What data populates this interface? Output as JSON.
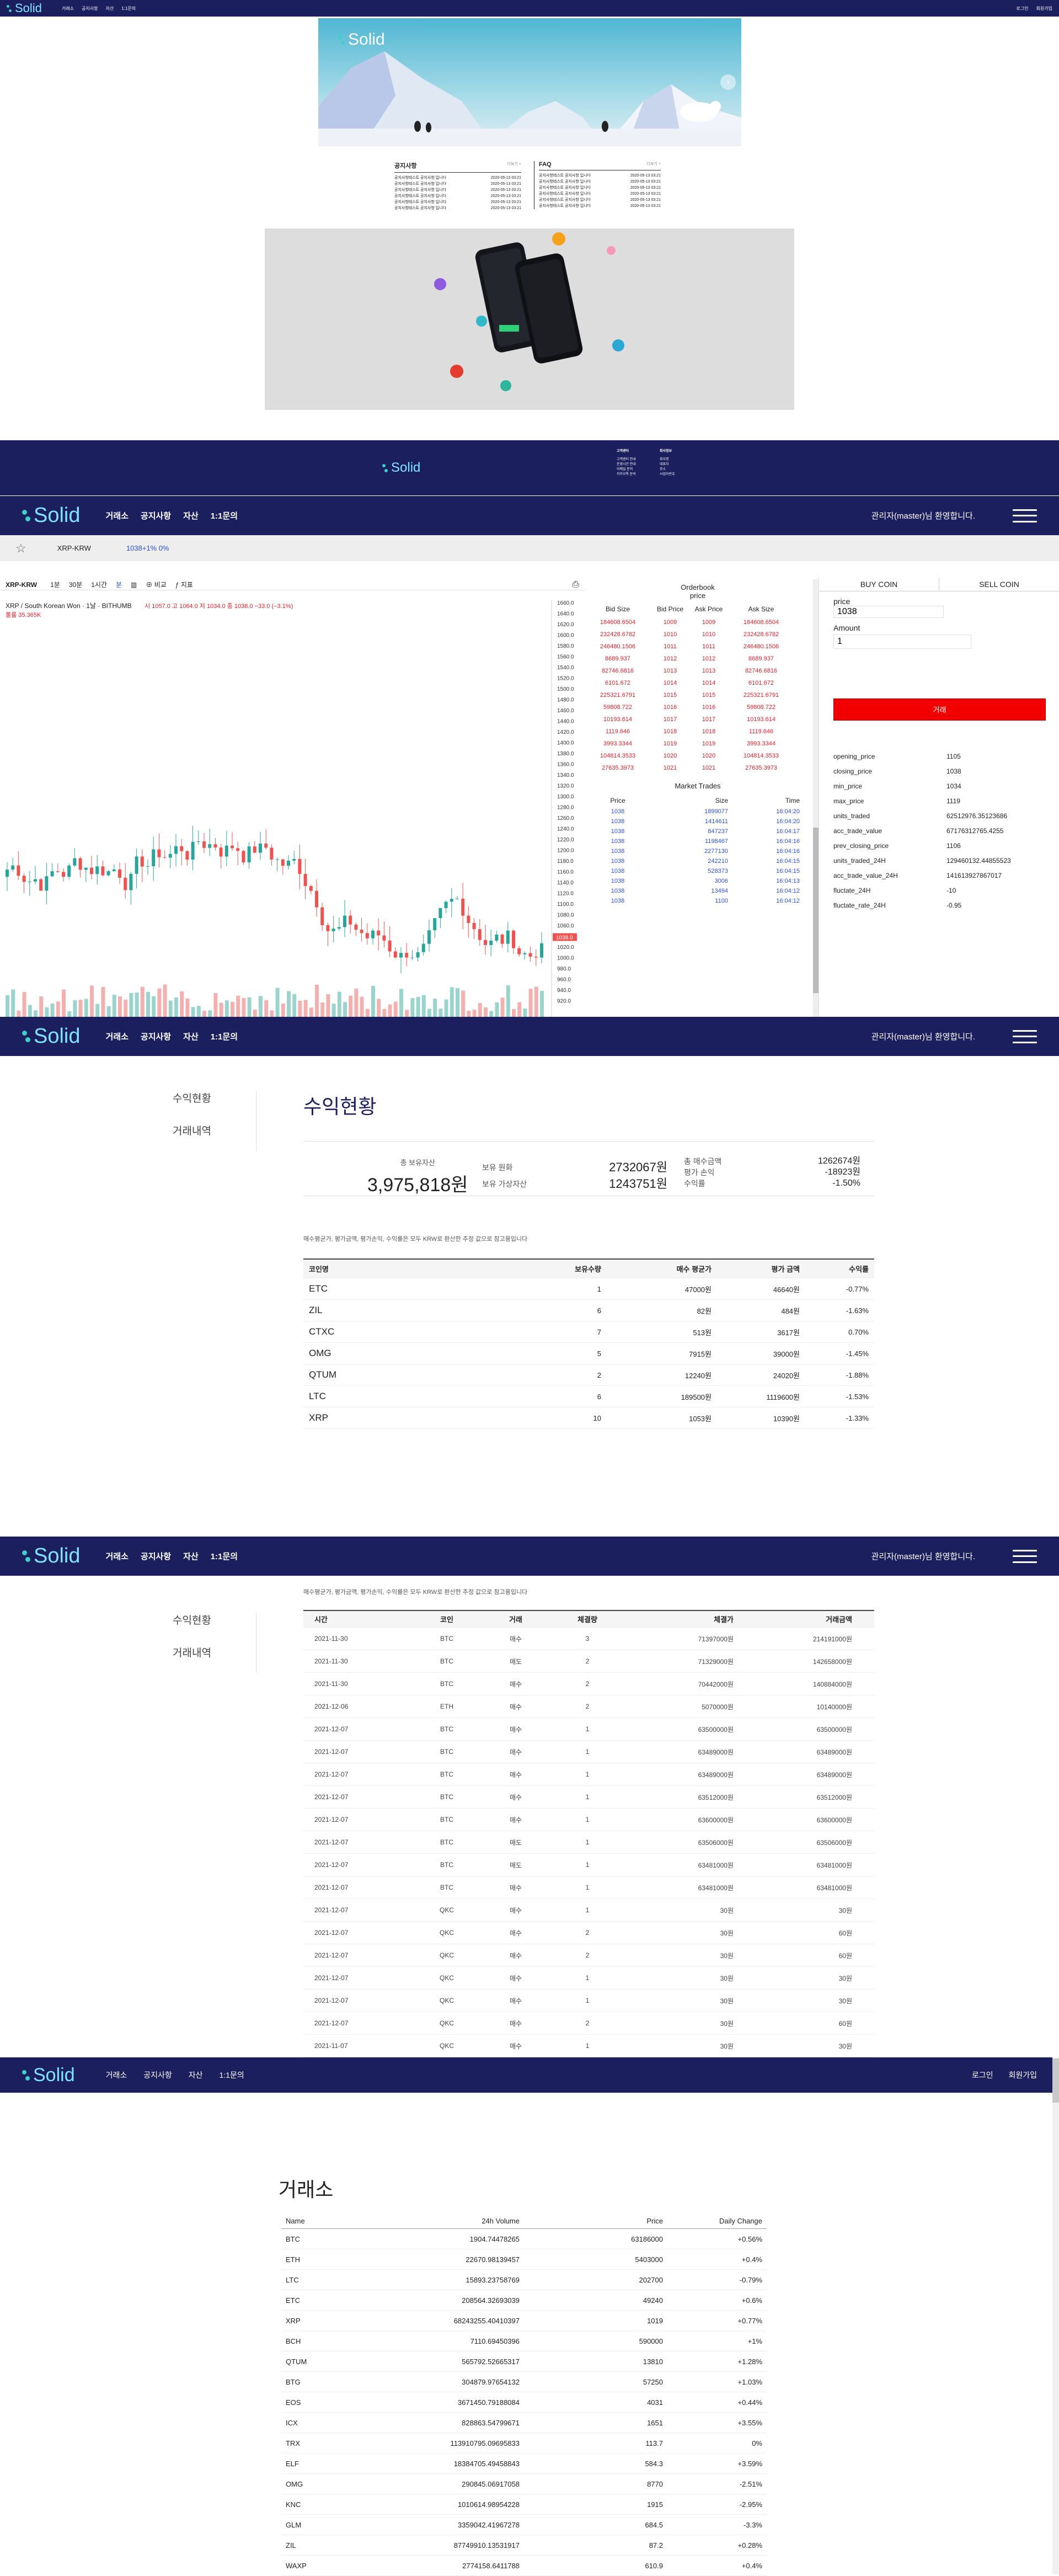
{
  "top_nav": {
    "logo": "Solid",
    "items": [
      "거래소",
      "공지사항",
      "자산",
      "1:1문의"
    ],
    "login": "로그인",
    "signup": "회원가입"
  },
  "hero": {
    "logo": "Solid"
  },
  "notice": {
    "title": "공지사항",
    "more": "더보기 +",
    "rows": [
      {
        "t": "공지사항테스트 공지사항 입니다",
        "d": "2020-05-13 03:21"
      },
      {
        "t": "공지사항테스트 공지사항 입니다",
        "d": "2020-05-13 03:21"
      },
      {
        "t": "공지사항테스트 공지사항 입니다",
        "d": "2020-05-13 03:21"
      },
      {
        "t": "공지사항테스트 공지사항 입니다",
        "d": "2020-05-13 03:21"
      },
      {
        "t": "공지사항테스트 공지사항 입니다",
        "d": "2020-05-13 03:21"
      },
      {
        "t": "공지사항테스트 공지사항 입니다",
        "d": "2020-05-13 03:21"
      }
    ]
  },
  "faq": {
    "title": "FAQ",
    "more": "더보기 +",
    "rows": [
      {
        "t": "공지사항테스트 공지사항 입니다",
        "d": "2020-05-13 03:21"
      },
      {
        "t": "공지사항테스트 공지사항 입니다",
        "d": "2020-05-13 03:21"
      },
      {
        "t": "공지사항테스트 공지사항 입니다",
        "d": "2020-05-13 03:21"
      },
      {
        "t": "공지사항테스트 공지사항 입니다",
        "d": "2020-05-13 03:21"
      },
      {
        "t": "공지사항테스트 공지사항 입니다",
        "d": "2020-05-13 03:21"
      },
      {
        "t": "공지사항테스트 공지사항 입니다",
        "d": "2020-05-13 03:21"
      }
    ]
  },
  "footer": {
    "logo": "Solid",
    "col1_title": "고객센터",
    "col2_title": "회사정보",
    "lines": [
      "고객센터 안내",
      "운영시간 안내",
      "이메일 문의",
      "카카오톡 문의"
    ],
    "lines2": [
      "회사명",
      "대표자",
      "주소",
      "사업자번호"
    ]
  },
  "app_nav": {
    "logo": "Solid",
    "items": [
      "거래소",
      "공지사항",
      "자산",
      "1:1문의"
    ],
    "welcome": "관리자(master)님 환영합니다."
  },
  "exchange": {
    "market": "XRP-KRW",
    "price_change": "1038+1% 0%",
    "toolbar": [
      "1분",
      "30분",
      "1시간",
      "분",
      "비교",
      "지표"
    ],
    "symbol_line": "XRP / South Korean Won · 1날 · BITHUMB",
    "ohlc": "시 1057.0  고 1064.0  저 1034.0  종 1038.0  −33.0 (−3.1%)",
    "volume": "볼륨 35.365K",
    "price_ticks": [
      "1660.0",
      "1640.0",
      "1620.0",
      "1600.0",
      "1580.0",
      "1560.0",
      "1540.0",
      "1520.0",
      "1500.0",
      "1480.0",
      "1460.0",
      "1440.0",
      "1420.0",
      "1400.0",
      "1380.0",
      "1360.0",
      "1340.0",
      "1320.0",
      "1300.0",
      "1280.0",
      "1260.0",
      "1240.0",
      "1220.0",
      "1200.0",
      "1180.0",
      "1160.0",
      "1140.0",
      "1120.0",
      "1100.0",
      "1080.0",
      "1060.0",
      "1038.0",
      "1020.0",
      "1000.0",
      "980.0",
      "960.0",
      "940.0",
      "920.0"
    ],
    "price_tag": "1038.0",
    "orderbook": {
      "title": "Orderbook",
      "subtitle": "price",
      "headers": [
        "Bid Size",
        "Bid Price",
        "Ask Price",
        "Ask Size"
      ],
      "rows": [
        [
          "184608.6504",
          "1009",
          "1009",
          "184608.6504"
        ],
        [
          "232428.6782",
          "1010",
          "1010",
          "232428.6782"
        ],
        [
          "246480.1506",
          "1011",
          "1011",
          "246480.1506"
        ],
        [
          "8689.937",
          "1012",
          "1012",
          "8689.937"
        ],
        [
          "82746.6816",
          "1013",
          "1013",
          "82746.6816"
        ],
        [
          "6101.672",
          "1014",
          "1014",
          "6101.672"
        ],
        [
          "225321.6791",
          "1015",
          "1015",
          "225321.6791"
        ],
        [
          "59808.722",
          "1016",
          "1016",
          "59808.722"
        ],
        [
          "10193.614",
          "1017",
          "1017",
          "10193.614"
        ],
        [
          "1119.646",
          "1018",
          "1018",
          "1119.646"
        ],
        [
          "3993.3344",
          "1019",
          "1019",
          "3993.3344"
        ],
        [
          "104814.3533",
          "1020",
          "1020",
          "104814.3533"
        ],
        [
          "27635.3973",
          "1021",
          "1021",
          "27635.3973"
        ]
      ]
    },
    "trades": {
      "title": "Market Trades",
      "headers": [
        "Price",
        "Size",
        "Time"
      ],
      "rows": [
        [
          "1038",
          "1899077",
          "16:04:20"
        ],
        [
          "1038",
          "1414611",
          "16:04:20"
        ],
        [
          "1038",
          "847237",
          "16:04:17"
        ],
        [
          "1038",
          "1198467",
          "16:04:16"
        ],
        [
          "1038",
          "2277130",
          "16:04:16"
        ],
        [
          "1038",
          "242210",
          "16:04:15"
        ],
        [
          "1038",
          "528373",
          "16:04:15"
        ],
        [
          "1038",
          "3006",
          "16:04:13"
        ],
        [
          "1038",
          "13494",
          "16:04:12"
        ],
        [
          "1038",
          "1100",
          "16:04:12"
        ]
      ]
    },
    "buy_tab": "BUY COIN",
    "sell_tab": "SELL COIN",
    "price_label": "price",
    "price_value": "1038",
    "amount_label": "Amount",
    "amount_value": "1",
    "trade_button": "거래",
    "stats": [
      [
        "opening_price",
        "1105"
      ],
      [
        "closing_price",
        "1038"
      ],
      [
        "min_price",
        "1034"
      ],
      [
        "max_price",
        "1119"
      ],
      [
        "units_traded",
        "62512976.35123686"
      ],
      [
        "acc_trade_value",
        "67176312765.4255"
      ],
      [
        "prev_closing_price",
        "1106"
      ],
      [
        "units_traded_24H",
        "129460132.44855523"
      ],
      [
        "acc_trade_value_24H",
        "141613927867017"
      ],
      [
        "fluctate_24H",
        "-10"
      ],
      [
        "fluctate_rate_24H",
        "-0.95"
      ]
    ]
  },
  "assets": {
    "menu": [
      "수익현황",
      "거래내역"
    ],
    "title": "수익현황",
    "total_label": "총 보유자산",
    "total_value": "3,975,818원",
    "krw_label": "보유 원화",
    "krw_value": "2732067원",
    "coin_label": "보유 가상자산",
    "coin_value": "1243751원",
    "buy_label": "총 매수금액",
    "buy_value": "1262674원",
    "eval_label": "평가 손익",
    "eval_value": "-18923원",
    "rate_label": "수익률",
    "rate_value": "-1.50%",
    "note": "매수평균가, 평가금액, 평가손익, 수익률은 모두 KRW로 환산한 추정 값으로 참고용입니다",
    "headers": [
      "코인명",
      "보유수량",
      "매수 평균가",
      "평가 금액",
      "수익률"
    ],
    "rows": [
      [
        "ETC",
        "1",
        "47000원",
        "46640원",
        "-0.77%"
      ],
      [
        "ZIL",
        "6",
        "82원",
        "484원",
        "-1.63%"
      ],
      [
        "CTXC",
        "7",
        "513원",
        "3617원",
        "0.70%"
      ],
      [
        "OMG",
        "5",
        "7915원",
        "39000원",
        "-1.45%"
      ],
      [
        "QTUM",
        "2",
        "12240원",
        "24020원",
        "-1.88%"
      ],
      [
        "LTC",
        "6",
        "189500원",
        "1119600원",
        "-1.53%"
      ],
      [
        "XRP",
        "10",
        "1053원",
        "10390원",
        "-1.33%"
      ]
    ]
  },
  "history": {
    "menu": [
      "수익현황",
      "거래내역"
    ],
    "note": "매수평균가, 평가금액, 평가손익, 수익률은 모두 KRW로 환산한 추정 값으로 참고용입니다",
    "headers": [
      "시간",
      "코인",
      "거래",
      "체결량",
      "체결가",
      "거래금액"
    ],
    "rows": [
      [
        "2021-11-30",
        "BTC",
        "매수",
        "3",
        "71397000원",
        "214191000원"
      ],
      [
        "2021-11-30",
        "BTC",
        "매도",
        "2",
        "71329000원",
        "142658000원"
      ],
      [
        "2021-11-30",
        "BTC",
        "매수",
        "2",
        "70442000원",
        "140884000원"
      ],
      [
        "2021-12-06",
        "ETH",
        "매수",
        "2",
        "5070000원",
        "10140000원"
      ],
      [
        "2021-12-07",
        "BTC",
        "매수",
        "1",
        "63500000원",
        "63500000원"
      ],
      [
        "2021-12-07",
        "BTC",
        "매수",
        "1",
        "63489000원",
        "63489000원"
      ],
      [
        "2021-12-07",
        "BTC",
        "매수",
        "1",
        "63489000원",
        "63489000원"
      ],
      [
        "2021-12-07",
        "BTC",
        "매수",
        "1",
        "63512000원",
        "63512000원"
      ],
      [
        "2021-12-07",
        "BTC",
        "매수",
        "1",
        "63600000원",
        "63600000원"
      ],
      [
        "2021-12-07",
        "BTC",
        "매도",
        "1",
        "63506000원",
        "63506000원"
      ],
      [
        "2021-12-07",
        "BTC",
        "매도",
        "1",
        "63481000원",
        "63481000원"
      ],
      [
        "2021-12-07",
        "BTC",
        "매수",
        "1",
        "63481000원",
        "63481000원"
      ],
      [
        "2021-12-07",
        "QKC",
        "매수",
        "1",
        "30원",
        "30원"
      ],
      [
        "2021-12-07",
        "QKC",
        "매수",
        "2",
        "30원",
        "60원"
      ],
      [
        "2021-12-07",
        "QKC",
        "매수",
        "2",
        "30원",
        "60원"
      ],
      [
        "2021-12-07",
        "QKC",
        "매수",
        "1",
        "30원",
        "30원"
      ],
      [
        "2021-12-07",
        "QKC",
        "매수",
        "1",
        "30원",
        "30원"
      ],
      [
        "2021-12-07",
        "QKC",
        "매수",
        "2",
        "30원",
        "60원"
      ],
      [
        "2021-11-07",
        "QKC",
        "매수",
        "1",
        "30원",
        "30원"
      ]
    ]
  },
  "market": {
    "title": "거래소",
    "headers": [
      "Name",
      "24h Volume",
      "Price",
      "Daily Change"
    ],
    "rows": [
      [
        "BTC",
        "1904.74478265",
        "63186000",
        "+0.56%"
      ],
      [
        "ETH",
        "22670.98139457",
        "5403000",
        "+0.4%"
      ],
      [
        "LTC",
        "15893.23758769",
        "202700",
        "-0.79%"
      ],
      [
        "ETC",
        "208564.32693039",
        "49240",
        "+0.6%"
      ],
      [
        "XRP",
        "68243255.40410397",
        "1019",
        "+0.77%"
      ],
      [
        "BCH",
        "7110.69450396",
        "590000",
        "+1%"
      ],
      [
        "QTUM",
        "565792.52665317",
        "13810",
        "+1.28%"
      ],
      [
        "BTG",
        "304879.97654132",
        "57250",
        "+1.03%"
      ],
      [
        "EOS",
        "3671450.79188084",
        "4031",
        "+0.44%"
      ],
      [
        "ICX",
        "828863.54799671",
        "1651",
        "+3.55%"
      ],
      [
        "TRX",
        "113910795.09695833",
        "113.7",
        "0%"
      ],
      [
        "ELF",
        "18384705.49458843",
        "584.3",
        "+3.59%"
      ],
      [
        "OMG",
        "290845.06917058",
        "8770",
        "-2.51%"
      ],
      [
        "KNC",
        "1010614.98954228",
        "1915",
        "-2.95%"
      ],
      [
        "GLM",
        "3359042.41967278",
        "684.5",
        "-3.3%"
      ],
      [
        "ZIL",
        "87749910.13531917",
        "87.2",
        "+0.28%"
      ],
      [
        "WAXP",
        "2774158.6411788",
        "610.9",
        "+0.4%"
      ]
    ]
  }
}
